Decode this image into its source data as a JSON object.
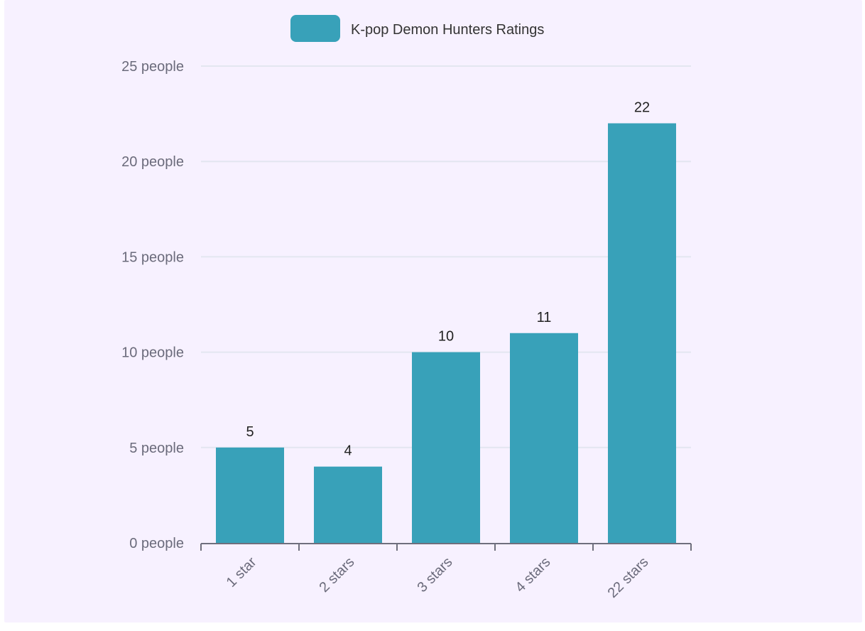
{
  "colors": {
    "background": "#f7f1ff",
    "bar": "#38a1b9",
    "gridline": "#e3e6f0",
    "axis": "#6f6f7d"
  },
  "legend": {
    "label": "K-pop Demon Hunters Ratings",
    "placement": "top-center"
  },
  "chart_data": {
    "type": "bar",
    "categories": [
      "1 star",
      "2 stars",
      "3 stars",
      "4 stars",
      "22 stars"
    ],
    "series": [
      {
        "name": "K-pop Demon Hunters Ratings",
        "values": [
          5,
          4,
          10,
          11,
          22
        ]
      }
    ],
    "data_labels": [
      "5",
      "4",
      "10",
      "11",
      "22"
    ],
    "yticks": [
      0,
      5,
      10,
      15,
      20,
      25
    ],
    "ytick_labels": [
      "0 people",
      "5 people",
      "10 people",
      "15 people",
      "20 people",
      "25 people"
    ],
    "ylim": [
      0,
      25
    ],
    "grid": true,
    "xlabel": "",
    "ylabel": ""
  }
}
